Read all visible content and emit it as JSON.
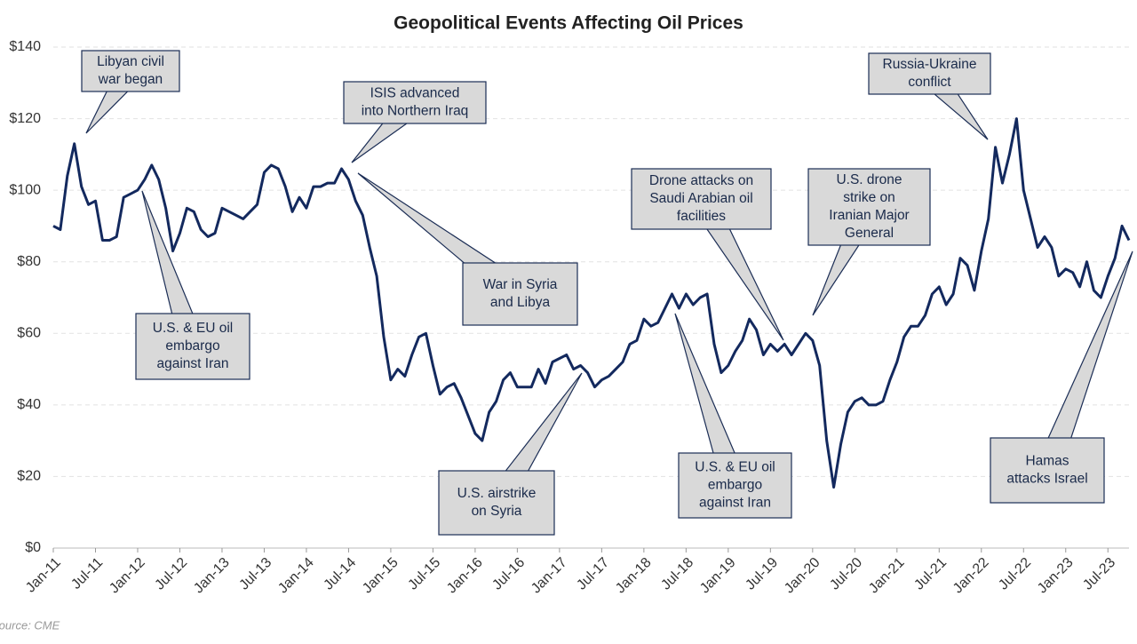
{
  "chart_data": {
    "type": "line",
    "title": "Geopolitical Events Affecting Oil Prices",
    "source": "Source: CME",
    "x": [
      "2011-01",
      "2011-02",
      "2011-03",
      "2011-04",
      "2011-05",
      "2011-06",
      "2011-07",
      "2011-08",
      "2011-09",
      "2011-10",
      "2011-11",
      "2011-12",
      "2012-01",
      "2012-02",
      "2012-03",
      "2012-04",
      "2012-05",
      "2012-06",
      "2012-07",
      "2012-08",
      "2012-09",
      "2012-10",
      "2012-11",
      "2012-12",
      "2013-01",
      "2013-02",
      "2013-03",
      "2013-04",
      "2013-05",
      "2013-06",
      "2013-07",
      "2013-08",
      "2013-09",
      "2013-10",
      "2013-11",
      "2013-12",
      "2014-01",
      "2014-02",
      "2014-03",
      "2014-04",
      "2014-05",
      "2014-06",
      "2014-07",
      "2014-08",
      "2014-09",
      "2014-10",
      "2014-11",
      "2014-12",
      "2015-01",
      "2015-02",
      "2015-03",
      "2015-04",
      "2015-05",
      "2015-06",
      "2015-07",
      "2015-08",
      "2015-09",
      "2015-10",
      "2015-11",
      "2015-12",
      "2016-01",
      "2016-02",
      "2016-03",
      "2016-04",
      "2016-05",
      "2016-06",
      "2016-07",
      "2016-08",
      "2016-09",
      "2016-10",
      "2016-11",
      "2016-12",
      "2017-01",
      "2017-02",
      "2017-03",
      "2017-04",
      "2017-05",
      "2017-06",
      "2017-07",
      "2017-08",
      "2017-09",
      "2017-10",
      "2017-11",
      "2017-12",
      "2018-01",
      "2018-02",
      "2018-03",
      "2018-04",
      "2018-05",
      "2018-06",
      "2018-07",
      "2018-08",
      "2018-09",
      "2018-10",
      "2018-11",
      "2018-12",
      "2019-01",
      "2019-02",
      "2019-03",
      "2019-04",
      "2019-05",
      "2019-06",
      "2019-07",
      "2019-08",
      "2019-09",
      "2019-10",
      "2019-11",
      "2019-12",
      "2020-01",
      "2020-02",
      "2020-03",
      "2020-04",
      "2020-05",
      "2020-06",
      "2020-07",
      "2020-08",
      "2020-09",
      "2020-10",
      "2020-11",
      "2020-12",
      "2021-01",
      "2021-02",
      "2021-03",
      "2021-04",
      "2021-05",
      "2021-06",
      "2021-07",
      "2021-08",
      "2021-09",
      "2021-10",
      "2021-11",
      "2021-12",
      "2022-01",
      "2022-02",
      "2022-03",
      "2022-04",
      "2022-05",
      "2022-06",
      "2022-07",
      "2022-08",
      "2022-09",
      "2022-10",
      "2022-11",
      "2022-12",
      "2023-01",
      "2023-02",
      "2023-03",
      "2023-04",
      "2023-05",
      "2023-06",
      "2023-07",
      "2023-08",
      "2023-09",
      "2023-10"
    ],
    "series": [
      {
        "name": "Oil price",
        "color": "#13295e",
        "values": [
          90,
          89,
          104,
          113,
          101,
          96,
          97,
          86,
          86,
          87,
          98,
          99,
          100,
          103,
          107,
          103,
          95,
          83,
          88,
          95,
          94,
          89,
          87,
          88,
          95,
          94,
          93,
          92,
          94,
          96,
          105,
          107,
          106,
          101,
          94,
          98,
          95,
          101,
          101,
          102,
          102,
          106,
          103,
          97,
          93,
          84,
          76,
          59,
          47,
          50,
          48,
          54,
          59,
          60,
          51,
          43,
          45,
          46,
          42,
          37,
          32,
          30,
          38,
          41,
          47,
          49,
          45,
          45,
          45,
          50,
          46,
          52,
          53,
          54,
          50,
          51,
          49,
          45,
          47,
          48,
          50,
          52,
          57,
          58,
          64,
          62,
          63,
          67,
          71,
          67,
          71,
          68,
          70,
          71,
          57,
          49,
          51,
          55,
          58,
          64,
          61,
          54,
          57,
          55,
          57,
          54,
          57,
          60,
          58,
          51,
          30,
          17,
          29,
          38,
          41,
          42,
          40,
          40,
          41,
          47,
          52,
          59,
          62,
          62,
          65,
          71,
          73,
          68,
          71,
          81,
          79,
          72,
          83,
          92,
          112,
          102,
          110,
          120,
          100,
          92,
          84,
          87,
          84,
          76,
          78,
          77,
          73,
          80,
          72,
          70,
          76,
          81,
          90,
          86
        ]
      }
    ],
    "xlim": [
      "2011-01",
      "2023-10"
    ],
    "xticks": [
      {
        "value": "2011-01",
        "label": "Jan-11"
      },
      {
        "value": "2011-07",
        "label": "Jul-11"
      },
      {
        "value": "2012-01",
        "label": "Jan-12"
      },
      {
        "value": "2012-07",
        "label": "Jul-12"
      },
      {
        "value": "2013-01",
        "label": "Jan-13"
      },
      {
        "value": "2013-07",
        "label": "Jul-13"
      },
      {
        "value": "2014-01",
        "label": "Jan-14"
      },
      {
        "value": "2014-07",
        "label": "Jul-14"
      },
      {
        "value": "2015-01",
        "label": "Jan-15"
      },
      {
        "value": "2015-07",
        "label": "Jul-15"
      },
      {
        "value": "2016-01",
        "label": "Jan-16"
      },
      {
        "value": "2016-07",
        "label": "Jul-16"
      },
      {
        "value": "2017-01",
        "label": "Jan-17"
      },
      {
        "value": "2017-07",
        "label": "Jul-17"
      },
      {
        "value": "2018-01",
        "label": "Jan-18"
      },
      {
        "value": "2018-07",
        "label": "Jul-18"
      },
      {
        "value": "2019-01",
        "label": "Jan-19"
      },
      {
        "value": "2019-07",
        "label": "Jul-19"
      },
      {
        "value": "2020-01",
        "label": "Jan-20"
      },
      {
        "value": "2020-07",
        "label": "Jul-20"
      },
      {
        "value": "2021-01",
        "label": "Jan-21"
      },
      {
        "value": "2021-07",
        "label": "Jul-21"
      },
      {
        "value": "2022-01",
        "label": "Jan-22"
      },
      {
        "value": "2022-07",
        "label": "Jul-22"
      },
      {
        "value": "2023-01",
        "label": "Jan-23"
      },
      {
        "value": "2023-07",
        "label": "Jul-23"
      }
    ],
    "ylim": [
      0,
      140
    ],
    "yticks": [
      {
        "value": 0,
        "label": "$0"
      },
      {
        "value": 20,
        "label": "$20"
      },
      {
        "value": 40,
        "label": "$40"
      },
      {
        "value": 60,
        "label": "$60"
      },
      {
        "value": 80,
        "label": "$80"
      },
      {
        "value": 100,
        "label": "$100"
      },
      {
        "value": 120,
        "label": "$120"
      },
      {
        "value": 140,
        "label": "$140"
      }
    ],
    "grid": true,
    "annotations": [
      {
        "lines": [
          "Libyan civil",
          "war began"
        ]
      },
      {
        "lines": [
          "ISIS advanced",
          "into Northern Iraq"
        ]
      },
      {
        "lines": [
          "War in Syria",
          "and Libya"
        ]
      },
      {
        "lines": [
          "U.S. & EU oil",
          "embargo",
          "against Iran"
        ]
      },
      {
        "lines": [
          "U.S. airstrike",
          "on Syria"
        ]
      },
      {
        "lines": [
          "Drone attacks on",
          "Saudi Arabian oil",
          "facilities"
        ]
      },
      {
        "lines": [
          "U.S. drone",
          "strike on",
          "Iranian Major",
          "General"
        ]
      },
      {
        "lines": [
          "U.S. & EU oil",
          "embargo",
          "against Iran"
        ]
      },
      {
        "lines": [
          "Russia-Ukraine",
          "conflict"
        ]
      },
      {
        "lines": [
          "Hamas",
          "attacks Israel"
        ]
      }
    ]
  }
}
